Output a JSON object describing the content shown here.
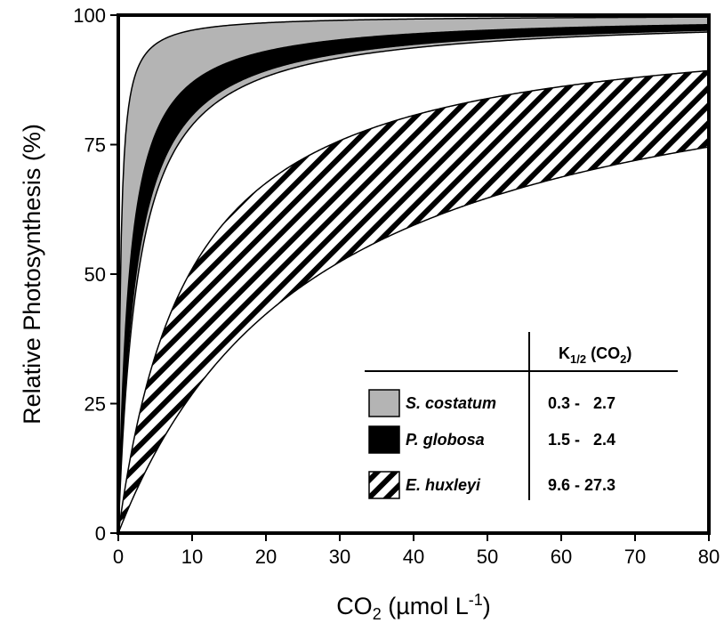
{
  "chart_data": {
    "type": "area",
    "title": "",
    "xlabel": {
      "main": "CO",
      "sub": "2",
      "rest": " (µmol L",
      "sup": "-1",
      "end": ")"
    },
    "ylabel": "Relative Photosynthesis (%)",
    "xlim": [
      0,
      80
    ],
    "ylim": [
      0,
      100
    ],
    "x_ticks": [
      0,
      10,
      20,
      30,
      40,
      50,
      60,
      70,
      80
    ],
    "y_ticks": [
      0,
      25,
      50,
      75,
      100
    ],
    "grid": false,
    "legend_position": "bottom-right",
    "legend_header": {
      "main": "K",
      "sub": "1/2",
      "rest": " (CO",
      "sub2": "2",
      "end": ")"
    },
    "series": [
      {
        "name": "S. costatum",
        "k_range_text": "0.3 -   2.7",
        "k_low": 0.3,
        "k_high": 2.7,
        "fill": "#b4b4b4"
      },
      {
        "name": "P. globosa",
        "k_range_text": "1.5 -   2.4",
        "k_low": 1.5,
        "k_high": 2.4,
        "fill": "#000000"
      },
      {
        "name": "E. huxleyi",
        "k_range_text": "9.6 - 27.3",
        "k_low": 9.6,
        "k_high": 27.3,
        "fill": "hatch"
      }
    ]
  }
}
